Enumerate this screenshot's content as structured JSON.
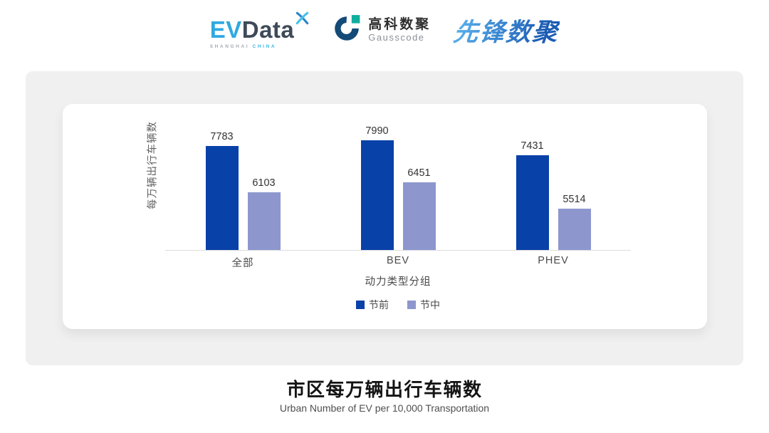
{
  "header": {
    "evdata": {
      "ev": "EV",
      "data": "Data",
      "sub_shanghai": "SHANGHAI",
      "sub_china": "CHINA"
    },
    "gausscode": {
      "cn": "高科数聚",
      "en": "Gausscode"
    },
    "pioneer": {
      "text": "先锋数聚"
    }
  },
  "chart_data": {
    "type": "bar",
    "categories": [
      "全部",
      "BEV",
      "PHEV"
    ],
    "series": [
      {
        "name": "节前",
        "color": "#0841a8",
        "values": [
          7783,
          7990,
          7431
        ]
      },
      {
        "name": "节中",
        "color": "#8d97ce",
        "values": [
          6103,
          6451,
          5514
        ]
      }
    ],
    "ylabel": "每万辆出行车辆数",
    "xlabel": "动力类型分组",
    "ylim": [
      4000,
      8400
    ],
    "grid": false,
    "legend_position": "bottom",
    "bar_value_labels": true
  },
  "footer": {
    "title": "市区每万辆出行车辆数",
    "subtitle": "Urban Number of EV per 10,000 Transportation"
  },
  "colors": {
    "series_pre": "#0841a8",
    "series_mid": "#8d97ce",
    "panel_bg": "#f0f0f1",
    "card_bg": "#ffffff",
    "axis_line": "#dcdcdc"
  }
}
